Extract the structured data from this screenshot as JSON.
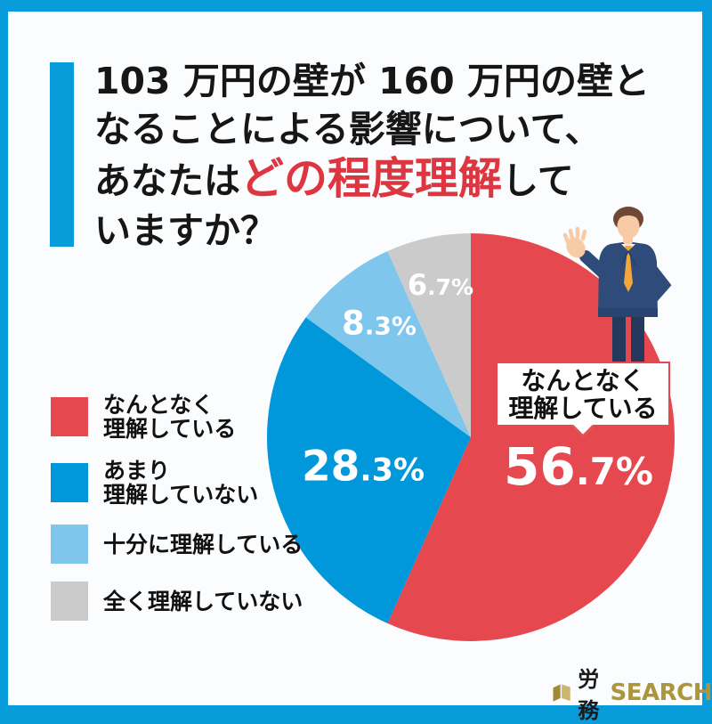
{
  "frame": {
    "color": "#089CDB",
    "panel_background": "#FBFCFD"
  },
  "title": {
    "line1": "103 万円の壁が 160 万円の壁と",
    "line2": "なることによる影響について、",
    "line3_pre": "あなたは",
    "line3_red": "どの程度理解",
    "line3_post": "して",
    "line4": "いますか？",
    "highlight_color": "#DE3640",
    "accent_color": "#089CDB"
  },
  "chart_data": {
    "type": "pie",
    "title": "103万円の壁が160万円の壁となることによる影響について、あなたはどの程度理解していますか？",
    "categories": [
      "なんとなく理解している",
      "あまり理解していない",
      "十分に理解している",
      "全く理解していない"
    ],
    "values": [
      56.7,
      28.3,
      8.3,
      6.7
    ],
    "unit": "%",
    "colors": [
      "#E5484F",
      "#0097DB",
      "#7EC6EC",
      "#CBCBCB"
    ],
    "start_angle": "top",
    "direction": "clockwise",
    "legend_position": "left",
    "labels": [
      {
        "main": "56",
        "sub": ".7%"
      },
      {
        "main": "28",
        "sub": ".3%"
      },
      {
        "main": "8",
        "sub": ".3%"
      },
      {
        "main": "6",
        "sub": ".7%"
      }
    ]
  },
  "callout": {
    "line1": "なんとなく",
    "line2": "理解している",
    "border_color": "#E5484F"
  },
  "legend": {
    "items": [
      {
        "color": "#E5484F",
        "line1": "なんとなく",
        "line2": "理解している"
      },
      {
        "color": "#0097DB",
        "line1": "あまり",
        "line2": "理解していない"
      },
      {
        "color": "#7EC6EC",
        "line1": "十分に理解している",
        "line2": ""
      },
      {
        "color": "#CBCBCB",
        "line1": "全く理解していない",
        "line2": ""
      }
    ]
  },
  "logo": {
    "text_black": "労務",
    "text_gold": "SEARCH",
    "gold_color": "#AD953B"
  }
}
